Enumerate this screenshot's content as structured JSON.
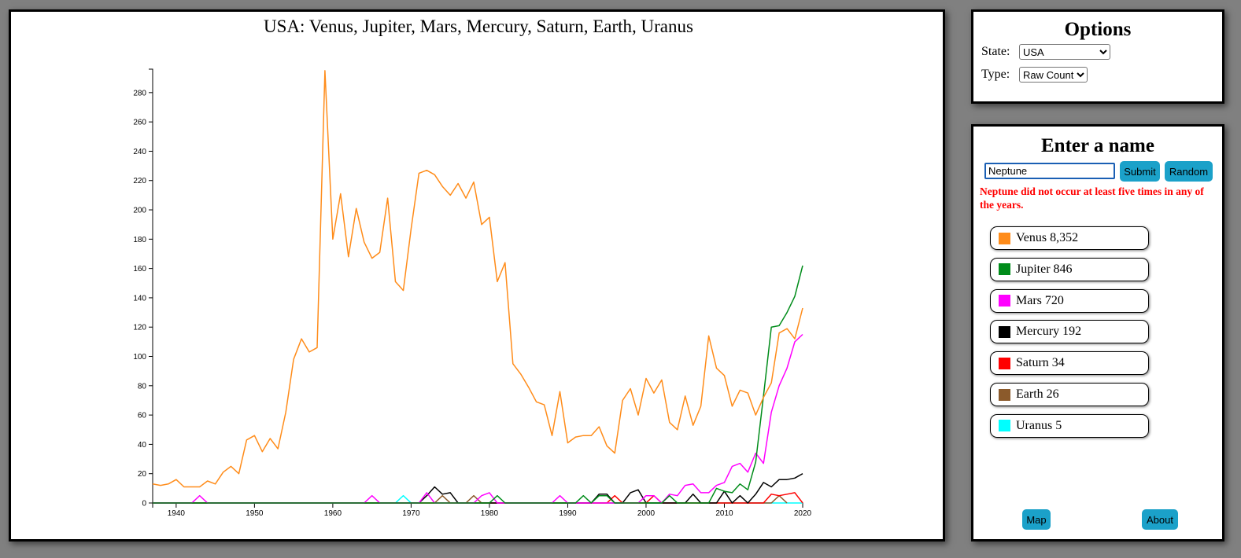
{
  "chart_data": {
    "type": "line",
    "title": "USA: Venus, Jupiter, Mars, Mercury, Saturn, Earth, Uranus",
    "xlim": [
      1937,
      2020
    ],
    "ylim": [
      0,
      296
    ],
    "x_ticks": [
      1940,
      1950,
      1960,
      1970,
      1980,
      1990,
      2000,
      2010,
      2020
    ],
    "y_ticks": [
      0,
      20,
      40,
      60,
      80,
      100,
      120,
      140,
      160,
      180,
      200,
      220,
      240,
      260,
      280
    ],
    "series": [
      {
        "name": "Venus",
        "color": "#ff8c1a",
        "points": [
          [
            1937,
            13
          ],
          [
            1938,
            12
          ],
          [
            1939,
            13
          ],
          [
            1940,
            16
          ],
          [
            1941,
            11
          ],
          [
            1942,
            11
          ],
          [
            1943,
            11
          ],
          [
            1944,
            15
          ],
          [
            1945,
            13
          ],
          [
            1946,
            21
          ],
          [
            1947,
            25
          ],
          [
            1948,
            20
          ],
          [
            1949,
            43
          ],
          [
            1950,
            46
          ],
          [
            1951,
            35
          ],
          [
            1952,
            44
          ],
          [
            1953,
            37
          ],
          [
            1954,
            62
          ],
          [
            1955,
            98
          ],
          [
            1956,
            112
          ],
          [
            1957,
            103
          ],
          [
            1958,
            106
          ],
          [
            1959,
            295
          ],
          [
            1960,
            180
          ],
          [
            1961,
            211
          ],
          [
            1962,
            168
          ],
          [
            1963,
            201
          ],
          [
            1964,
            178
          ],
          [
            1965,
            167
          ],
          [
            1966,
            171
          ],
          [
            1967,
            208
          ],
          [
            1968,
            151
          ],
          [
            1969,
            145
          ],
          [
            1970,
            187
          ],
          [
            1971,
            225
          ],
          [
            1972,
            227
          ],
          [
            1973,
            224
          ],
          [
            1974,
            216
          ],
          [
            1975,
            210
          ],
          [
            1976,
            218
          ],
          [
            1977,
            208
          ],
          [
            1978,
            219
          ],
          [
            1979,
            190
          ],
          [
            1980,
            195
          ],
          [
            1981,
            151
          ],
          [
            1982,
            164
          ],
          [
            1983,
            95
          ],
          [
            1984,
            88
          ],
          [
            1985,
            79
          ],
          [
            1986,
            69
          ],
          [
            1987,
            67
          ],
          [
            1988,
            46
          ],
          [
            1989,
            76
          ],
          [
            1990,
            41
          ],
          [
            1991,
            45
          ],
          [
            1992,
            46
          ],
          [
            1993,
            46
          ],
          [
            1994,
            52
          ],
          [
            1995,
            39
          ],
          [
            1996,
            34
          ],
          [
            1997,
            70
          ],
          [
            1998,
            78
          ],
          [
            1999,
            60
          ],
          [
            2000,
            85
          ],
          [
            2001,
            75
          ],
          [
            2002,
            84
          ],
          [
            2003,
            55
          ],
          [
            2004,
            50
          ],
          [
            2005,
            73
          ],
          [
            2006,
            53
          ],
          [
            2007,
            66
          ],
          [
            2008,
            114
          ],
          [
            2009,
            92
          ],
          [
            2010,
            87
          ],
          [
            2011,
            66
          ],
          [
            2012,
            77
          ],
          [
            2013,
            75
          ],
          [
            2014,
            60
          ],
          [
            2015,
            72
          ],
          [
            2016,
            82
          ],
          [
            2017,
            116
          ],
          [
            2018,
            119
          ],
          [
            2019,
            112
          ],
          [
            2020,
            133
          ]
        ]
      },
      {
        "name": "Jupiter",
        "color": "#008c1a",
        "points": [
          [
            1937,
            0
          ],
          [
            1980,
            0
          ],
          [
            1981,
            5
          ],
          [
            1982,
            0
          ],
          [
            1991,
            0
          ],
          [
            1992,
            5
          ],
          [
            1993,
            0
          ],
          [
            1994,
            5
          ],
          [
            1995,
            5
          ],
          [
            1996,
            0
          ],
          [
            2002,
            0
          ],
          [
            2003,
            5
          ],
          [
            2004,
            0
          ],
          [
            2008,
            0
          ],
          [
            2009,
            10
          ],
          [
            2010,
            8
          ],
          [
            2011,
            7
          ],
          [
            2012,
            13
          ],
          [
            2013,
            9
          ],
          [
            2014,
            28
          ],
          [
            2015,
            73
          ],
          [
            2016,
            120
          ],
          [
            2017,
            121
          ],
          [
            2018,
            130
          ],
          [
            2019,
            141
          ],
          [
            2020,
            162
          ]
        ]
      },
      {
        "name": "Mars",
        "color": "#ff00ff",
        "points": [
          [
            1937,
            0
          ],
          [
            1942,
            0
          ],
          [
            1943,
            5
          ],
          [
            1944,
            0
          ],
          [
            1964,
            0
          ],
          [
            1965,
            5
          ],
          [
            1966,
            0
          ],
          [
            1971,
            0
          ],
          [
            1972,
            7
          ],
          [
            1973,
            0
          ],
          [
            1978,
            0
          ],
          [
            1979,
            5
          ],
          [
            1980,
            7
          ],
          [
            1981,
            0
          ],
          [
            1988,
            0
          ],
          [
            1989,
            5
          ],
          [
            1990,
            0
          ],
          [
            1999,
            0
          ],
          [
            2000,
            5
          ],
          [
            2001,
            5
          ],
          [
            2002,
            0
          ],
          [
            2003,
            6
          ],
          [
            2004,
            5
          ],
          [
            2005,
            12
          ],
          [
            2006,
            13
          ],
          [
            2007,
            7
          ],
          [
            2008,
            7
          ],
          [
            2009,
            12
          ],
          [
            2010,
            14
          ],
          [
            2011,
            25
          ],
          [
            2012,
            27
          ],
          [
            2013,
            21
          ],
          [
            2014,
            34
          ],
          [
            2015,
            27
          ],
          [
            2016,
            62
          ],
          [
            2017,
            80
          ],
          [
            2018,
            92
          ],
          [
            2019,
            110
          ],
          [
            2020,
            115
          ]
        ]
      },
      {
        "name": "Mercury",
        "color": "#000000",
        "points": [
          [
            1937,
            0
          ],
          [
            1971,
            0
          ],
          [
            1972,
            5
          ],
          [
            1973,
            11
          ],
          [
            1974,
            6
          ],
          [
            1975,
            7
          ],
          [
            1976,
            0
          ],
          [
            1993,
            0
          ],
          [
            1994,
            6
          ],
          [
            1995,
            6
          ],
          [
            1996,
            0
          ],
          [
            1997,
            0
          ],
          [
            1998,
            7
          ],
          [
            1999,
            9
          ],
          [
            2000,
            0
          ],
          [
            2005,
            0
          ],
          [
            2006,
            6
          ],
          [
            2007,
            0
          ],
          [
            2009,
            0
          ],
          [
            2010,
            8
          ],
          [
            2011,
            0
          ],
          [
            2012,
            5
          ],
          [
            2013,
            0
          ],
          [
            2014,
            6
          ],
          [
            2015,
            14
          ],
          [
            2016,
            11
          ],
          [
            2017,
            16
          ],
          [
            2018,
            16
          ],
          [
            2019,
            17
          ],
          [
            2020,
            20
          ]
        ]
      },
      {
        "name": "Saturn",
        "color": "#ff0000",
        "points": [
          [
            1937,
            0
          ],
          [
            1995,
            0
          ],
          [
            1996,
            5
          ],
          [
            1997,
            0
          ],
          [
            2000,
            0
          ],
          [
            2001,
            5
          ],
          [
            2002,
            0
          ],
          [
            2015,
            0
          ],
          [
            2016,
            6
          ],
          [
            2017,
            5
          ],
          [
            2018,
            6
          ],
          [
            2019,
            7
          ],
          [
            2020,
            0
          ]
        ]
      },
      {
        "name": "Earth",
        "color": "#8b5a2b",
        "points": [
          [
            1937,
            0
          ],
          [
            1973,
            0
          ],
          [
            1974,
            5
          ],
          [
            1975,
            0
          ],
          [
            1977,
            0
          ],
          [
            1978,
            5
          ],
          [
            1979,
            0
          ],
          [
            2016,
            0
          ],
          [
            2017,
            5
          ],
          [
            2018,
            0
          ]
        ]
      },
      {
        "name": "Uranus",
        "color": "#00ffff",
        "points": [
          [
            1937,
            0
          ],
          [
            1968,
            0
          ],
          [
            1969,
            5
          ],
          [
            1970,
            0
          ],
          [
            2020,
            0
          ]
        ]
      }
    ]
  },
  "options": {
    "title": "Options",
    "state_label": "State:",
    "state_value": "USA",
    "type_label": "Type:",
    "type_value": "Raw Count"
  },
  "name_panel": {
    "title": "Enter a name",
    "input_value": "Neptune",
    "submit_label": "Submit",
    "random_label": "Random",
    "error": "Neptune did not occur at least five times in any of the years."
  },
  "legend": [
    {
      "label": "Venus 8,352",
      "color": "#ff8c1a"
    },
    {
      "label": "Jupiter 846",
      "color": "#008c1a"
    },
    {
      "label": "Mars 720",
      "color": "#ff00ff"
    },
    {
      "label": "Mercury 192",
      "color": "#000000"
    },
    {
      "label": "Saturn 34",
      "color": "#ff0000"
    },
    {
      "label": "Earth 26",
      "color": "#8b5a2b"
    },
    {
      "label": "Uranus 5",
      "color": "#00ffff"
    }
  ],
  "footer": {
    "map_label": "Map",
    "about_label": "About"
  }
}
